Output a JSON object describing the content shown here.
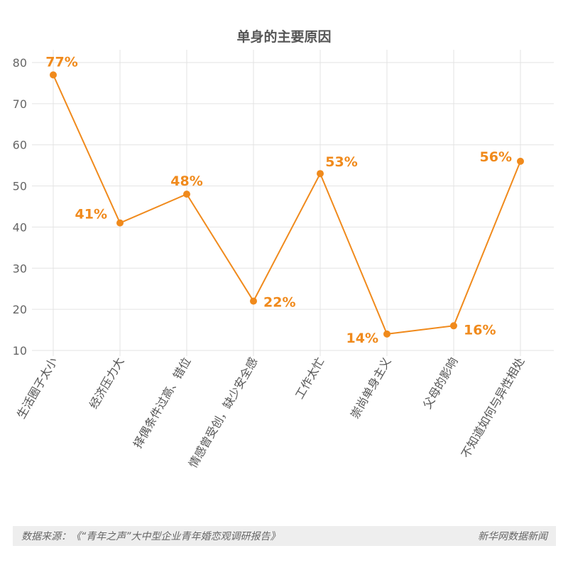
{
  "chart_data": {
    "type": "line",
    "title": "单身的主要原因",
    "categories": [
      "生活圈子太小",
      "经济压力大",
      "择偶条件过高、错位",
      "情感曾受创，缺少安全感",
      "工作太忙",
      "崇尚单身主义",
      "父母的影响",
      "不知道如何与异性相处"
    ],
    "values": [
      77,
      41,
      48,
      22,
      53,
      14,
      16,
      56
    ],
    "data_labels": [
      "77%",
      "41%",
      "48%",
      "22%",
      "53%",
      "14%",
      "16%",
      "56%"
    ],
    "yticks": [
      10,
      20,
      30,
      40,
      50,
      60,
      70,
      80
    ],
    "ylim": [
      10,
      80
    ],
    "xlabel": "",
    "ylabel": "",
    "grid": true,
    "color": "#f08a1c"
  },
  "footer": {
    "source": "数据来源：《“青年之声”大中型企业青年婚恋观调研报告》",
    "brand": "新华网数据新闻"
  }
}
